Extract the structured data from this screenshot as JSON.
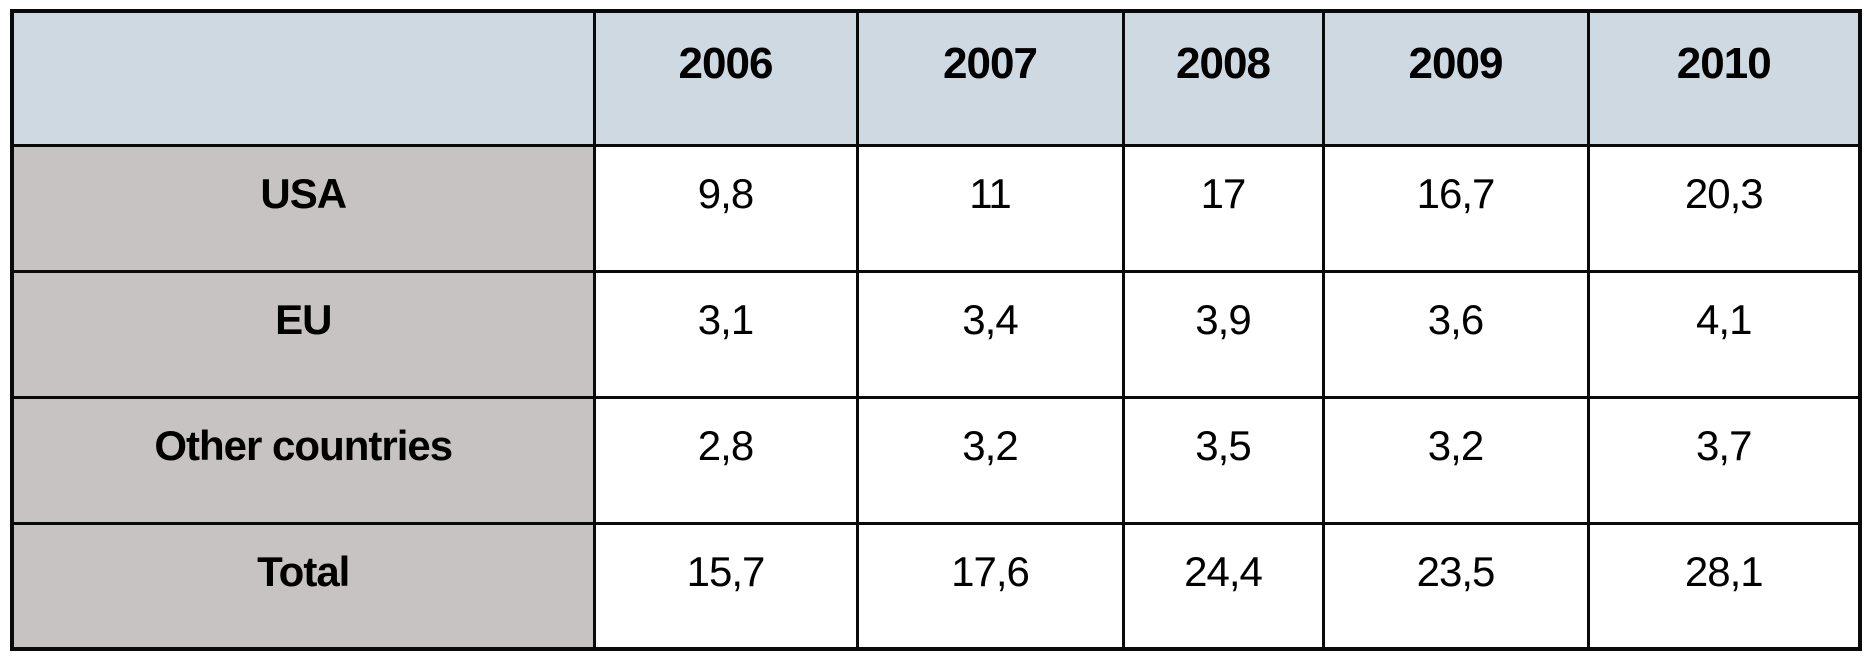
{
  "table": {
    "header": {
      "corner": "",
      "columns": [
        "2006",
        "2007",
        "2008",
        "2009",
        "2010"
      ]
    },
    "rows": [
      {
        "label": "USA",
        "cells": [
          "9,8",
          "11",
          "17",
          "16,7",
          "20,3"
        ]
      },
      {
        "label": "EU",
        "cells": [
          "3,1",
          "3,4",
          "3,9",
          "3,6",
          "4,1"
        ]
      },
      {
        "label": "Other countries",
        "cells": [
          "2,8",
          "3,2",
          "3,5",
          "3,2",
          "3,7"
        ]
      },
      {
        "label": "Total",
        "cells": [
          "15,7",
          "17,6",
          "24,4",
          "23,5",
          "28,1"
        ]
      }
    ],
    "colors": {
      "header_bg": "#cfd9e2",
      "label_bg": "#c8c3c3",
      "cell_bg": "#ffffff",
      "border": "#0a0a0a",
      "text": "#000000"
    }
  },
  "chart_data": {
    "type": "table",
    "columns": [
      "2006",
      "2007",
      "2008",
      "2009",
      "2010"
    ],
    "rows": [
      {
        "label": "USA",
        "values": [
          9.8,
          11,
          17,
          16.7,
          20.3
        ]
      },
      {
        "label": "EU",
        "values": [
          3.1,
          3.4,
          3.9,
          3.6,
          4.1
        ]
      },
      {
        "label": "Other countries",
        "values": [
          2.8,
          3.2,
          3.5,
          3.2,
          3.7
        ]
      },
      {
        "label": "Total",
        "values": [
          15.7,
          17.6,
          24.4,
          23.5,
          28.1
        ]
      }
    ],
    "decimal_separator": ","
  }
}
